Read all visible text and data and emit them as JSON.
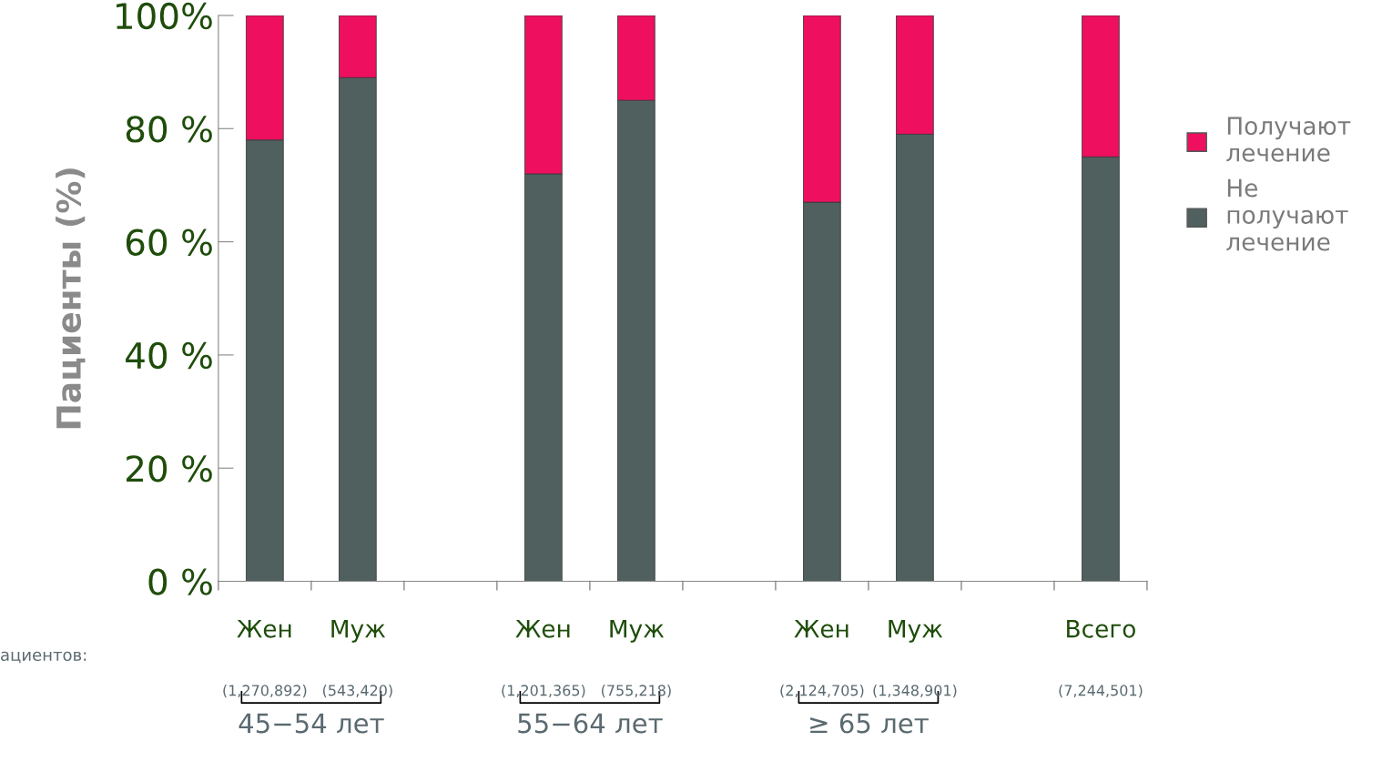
{
  "chart_data": {
    "type": "bar",
    "stacked": true,
    "ylabel": "Пациенты (%)",
    "categories": [
      "Жен",
      "Муж",
      null,
      "Жен",
      "Муж",
      null,
      "Жен",
      "Муж",
      null,
      "Всего"
    ],
    "series": [
      {
        "name": "Не получают лечение",
        "color": "#4f605e",
        "values": [
          78,
          89,
          null,
          72,
          85,
          null,
          67,
          79,
          null,
          75
        ]
      },
      {
        "name": "Получают лечение",
        "color": "#ee0f5f",
        "values": [
          22,
          11,
          null,
          28,
          15,
          null,
          33,
          21,
          null,
          25
        ]
      }
    ],
    "ylim": [
      0,
      100
    ],
    "yticks": [
      {
        "value": 0,
        "label": "0 %"
      },
      {
        "value": 20,
        "label": "20 %"
      },
      {
        "value": 40,
        "label": "40 %"
      },
      {
        "value": 60,
        "label": "60 %"
      },
      {
        "value": 80,
        "label": "80 %"
      },
      {
        "value": 100,
        "label": "100%"
      }
    ],
    "legend": "top right",
    "grid": false,
    "annotations": [
      "(1,270,892)",
      "(543,420)",
      "(1,201,365)",
      "(755,218)",
      "(2,124,705)",
      "(1,348,901)",
      "(7,244,501)",
      "45−54 лет",
      "55−64 лет",
      "≥ 65 лет",
      "ациентов:"
    ]
  }
}
